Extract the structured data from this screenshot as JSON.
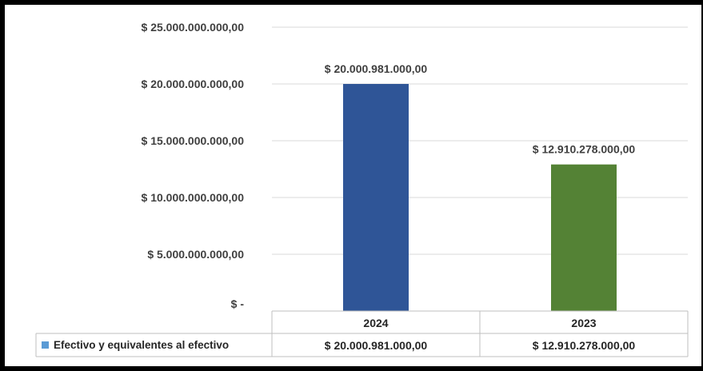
{
  "chart_data": {
    "type": "bar",
    "categories": [
      "2024",
      "2023"
    ],
    "series": [
      {
        "name": "Efectivo y equivalentes al efectivo",
        "values": [
          20000981000,
          12910278000
        ],
        "colors": [
          "#2F5597",
          "#548235"
        ],
        "data_labels": [
          "$ 20.000.981.000,00",
          "$ 12.910.278.000,00"
        ]
      }
    ],
    "ylim": [
      0,
      25000000000
    ],
    "yticks": [
      0,
      5000000000,
      10000000000,
      15000000000,
      20000000000,
      25000000000
    ],
    "ytick_labels": [
      "$ -",
      "$ 5.000.000.000,00",
      "$ 10.000.000.000,00",
      "$ 15.000.000.000,00",
      "$ 20.000.000.000,00",
      "$ 25.000.000.000,00"
    ],
    "grid": true,
    "legend_position": "data-table-left",
    "legend_marker_color": "#5B9BD5",
    "data_table": {
      "header": [
        "2024",
        "2023"
      ],
      "row_label": "Efectivo y equivalentes al efectivo",
      "row_values": [
        "$ 20.000.981.000,00",
        "$ 12.910.278.000,00"
      ]
    }
  }
}
